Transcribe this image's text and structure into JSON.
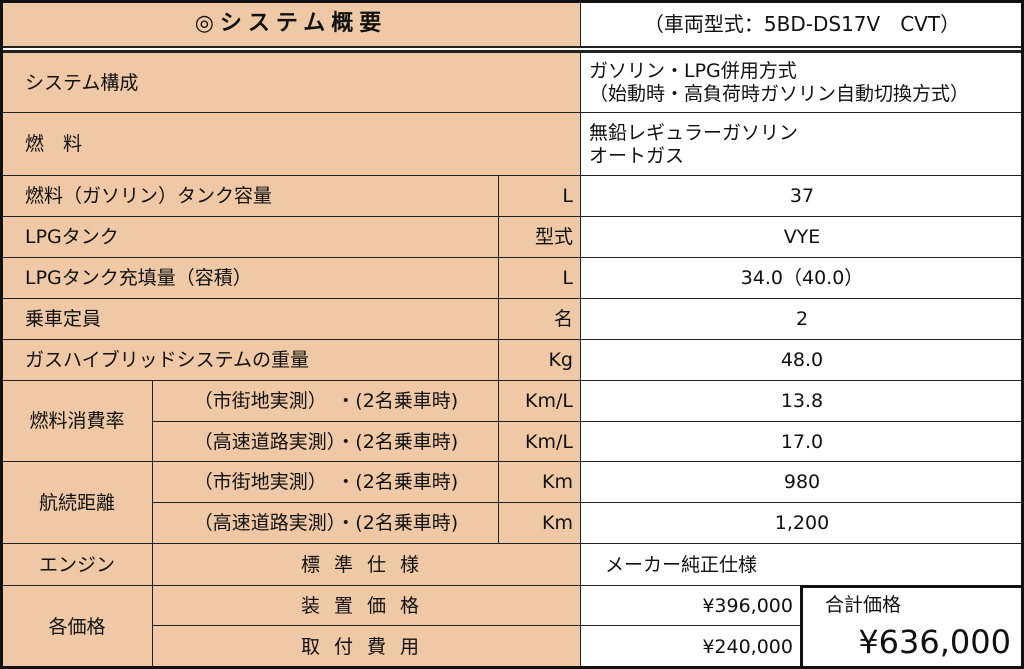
{
  "header": {
    "title": "◎システム概要",
    "model": "（車両型式：5BD-DS17V　CVT）"
  },
  "rows": [
    {
      "label": "システム構成",
      "value_lines": [
        "ガソリン・LPG併用方式",
        "（始動時・高負荷時ガソリン自動切換方式）"
      ]
    },
    {
      "label": "燃　料",
      "value_lines": [
        "無鉛レギュラーガソリン",
        "オートガス"
      ]
    },
    {
      "label": "燃料（ガソリン）タンク容量",
      "unit": "L",
      "value": "37"
    },
    {
      "label": "LPGタンク",
      "unit": "型式",
      "value": "VYE"
    },
    {
      "label": "LPGタンク充填量（容積）",
      "unit": "L",
      "value": "34.0（40.0）"
    },
    {
      "label": "乗車定員",
      "unit": "名",
      "value": "2"
    },
    {
      "label": "ガスハイブリッドシステムの重量",
      "unit": "Kg",
      "value": "48.0"
    }
  ],
  "fuel_economy": {
    "group": "燃料消費率",
    "items": [
      {
        "label": "（市街地実測）　・(2名乗車時)",
        "unit": "Km/L",
        "value": "13.8"
      },
      {
        "label": "（高速道路実測）・(2名乗車時)",
        "unit": "Km/L",
        "value": "17.0"
      }
    ]
  },
  "range": {
    "group": "航続距離",
    "items": [
      {
        "label": "（市街地実測）　・(2名乗車時)",
        "unit": "Km",
        "value": "980"
      },
      {
        "label": "（高速道路実測）・(2名乗車時)",
        "unit": "Km",
        "value": "1,200"
      }
    ]
  },
  "engine": {
    "group": "エンジン",
    "label": "標準仕様",
    "value": "メーカー純正仕様"
  },
  "prices": {
    "group": "各価格",
    "items": [
      {
        "label": "装置価格",
        "value": "¥396,000"
      },
      {
        "label": "取付費用",
        "value": "¥240,000"
      }
    ],
    "total_label": "合計価格",
    "total": "¥636,000"
  },
  "colors": {
    "label_bg": "#efc9a5",
    "value_bg": "#ffffff"
  }
}
